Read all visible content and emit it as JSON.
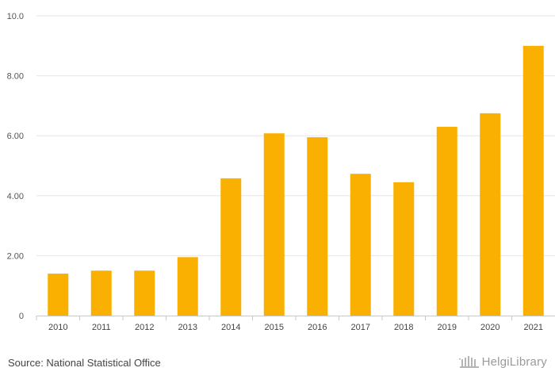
{
  "chart_data": {
    "type": "bar",
    "categories": [
      "2010",
      "2011",
      "2012",
      "2013",
      "2014",
      "2015",
      "2016",
      "2017",
      "2018",
      "2019",
      "2020",
      "2021"
    ],
    "values": [
      1.4,
      1.5,
      1.5,
      1.95,
      4.58,
      6.08,
      5.95,
      4.73,
      4.45,
      6.3,
      6.75,
      9.0
    ],
    "title": "",
    "xlabel": "",
    "ylabel": "",
    "ylim": [
      0,
      10
    ],
    "yticks": [
      0,
      2,
      4,
      6,
      8,
      10
    ],
    "ytick_labels": [
      "0",
      "2.00",
      "4.00",
      "6.00",
      "8.00",
      "10.0"
    ],
    "grid": true,
    "bar_color": "#f9b000"
  },
  "footer": {
    "source": "Source: National Statistical Office",
    "brand": "HelgiLibrary"
  }
}
